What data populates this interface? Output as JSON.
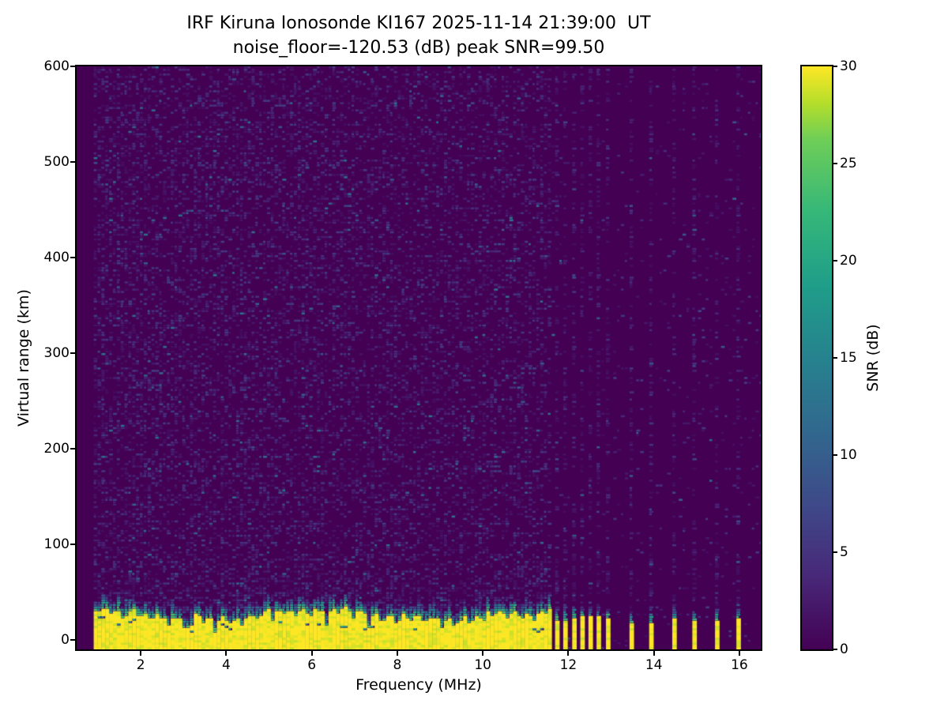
{
  "title": {
    "line1": "IRF Kiruna Ionosonde KI167 2025-11-14 21:39:00  UT",
    "line2": "noise_floor=-120.53 (dB) peak SNR=99.50"
  },
  "axes": {
    "x": {
      "label": "Frequency (MHz)",
      "min": 0.5,
      "max": 16.5,
      "ticks": [
        2,
        4,
        6,
        8,
        10,
        12,
        14,
        16
      ]
    },
    "y": {
      "label": "Virtual range (km)",
      "min": -10,
      "max": 600,
      "ticks": [
        0,
        100,
        200,
        300,
        400,
        500,
        600
      ]
    }
  },
  "colorbar": {
    "label": "SNR (dB)",
    "min": 0,
    "max": 30,
    "ticks": [
      0,
      5,
      10,
      15,
      20,
      25,
      30
    ],
    "colormap": "viridis"
  },
  "colors": {
    "figure_background": "#ffffff",
    "axis": "#000000",
    "heatmap_low": "#440154",
    "heatmap_high": "#fde725",
    "viridis_anchors": [
      [
        0,
        "#440154"
      ],
      [
        0.125,
        "#482878"
      ],
      [
        0.25,
        "#3e4a89"
      ],
      [
        0.375,
        "#31688e"
      ],
      [
        0.5,
        "#26828e"
      ],
      [
        0.625,
        "#1f9e89"
      ],
      [
        0.75,
        "#35b779"
      ],
      [
        0.875,
        "#6ece58"
      ],
      [
        0.9375,
        "#b5de2b"
      ],
      [
        1,
        "#fde725"
      ]
    ]
  },
  "chart_data": {
    "type": "heatmap",
    "station": "IRF Kiruna Ionosonde KI167",
    "timestamp_ut": "2025-11-14 21:39:00",
    "noise_floor_db": -120.53,
    "peak_snr_db": 99.5,
    "xlabel": "Frequency (MHz)",
    "ylabel": "Virtual range (km)",
    "colorbar_label": "SNR (dB)",
    "x_range_mhz": [
      0.5,
      16.5
    ],
    "y_range_km": [
      -10,
      600
    ],
    "snr_range_db": [
      0,
      30
    ],
    "colormap": "viridis",
    "grid": false,
    "data_start_mhz": 0.9,
    "freq_bin_mhz": 0.09,
    "range_bin_km": 2.5,
    "ground_clutter_band": {
      "freq_span_mhz": [
        0.9,
        11.58
      ],
      "saturated_top_km_mean": 27,
      "transition_thickness_km": 14,
      "max_extent_km": 55,
      "notches_mhz_depth_km": [
        [
          1.3,
          9
        ],
        [
          1.55,
          13
        ],
        [
          1.95,
          6
        ],
        [
          2.2,
          8
        ],
        [
          2.6,
          6
        ],
        [
          2.95,
          11
        ],
        [
          3.1,
          15
        ],
        [
          3.45,
          7
        ],
        [
          3.7,
          17
        ],
        [
          4.05,
          6
        ],
        [
          4.3,
          10
        ],
        [
          4.7,
          7
        ],
        [
          5.05,
          10
        ],
        [
          5.35,
          6
        ],
        [
          5.6,
          8
        ],
        [
          5.9,
          6
        ],
        [
          6.3,
          19
        ],
        [
          6.6,
          8
        ],
        [
          6.9,
          10
        ],
        [
          7.3,
          18
        ],
        [
          7.6,
          7
        ],
        [
          7.95,
          8
        ],
        [
          8.3,
          6
        ],
        [
          8.6,
          7
        ],
        [
          9.0,
          9
        ],
        [
          9.3,
          6
        ],
        [
          9.65,
          8
        ],
        [
          9.95,
          10
        ],
        [
          10.2,
          7
        ],
        [
          10.55,
          9
        ],
        [
          10.85,
          8
        ],
        [
          11.15,
          10
        ],
        [
          11.4,
          7
        ]
      ]
    },
    "sounding_stripe_freqs_mhz": {
      "dense": [
        11.74,
        11.93,
        12.14,
        12.33,
        12.52,
        12.71,
        12.93
      ],
      "sparse": [
        13.48,
        13.94,
        14.48,
        14.95,
        15.48,
        15.98
      ]
    },
    "background_noise": {
      "typical_snr_db": [
        1,
        7
      ],
      "occasional_peak_snr_db": 13,
      "speckle_density_below_11mhz": 0.4,
      "speckle_density_between_stripes": 0.045,
      "stripe_column_density": 0.3
    },
    "render_seed": 1672139
  }
}
